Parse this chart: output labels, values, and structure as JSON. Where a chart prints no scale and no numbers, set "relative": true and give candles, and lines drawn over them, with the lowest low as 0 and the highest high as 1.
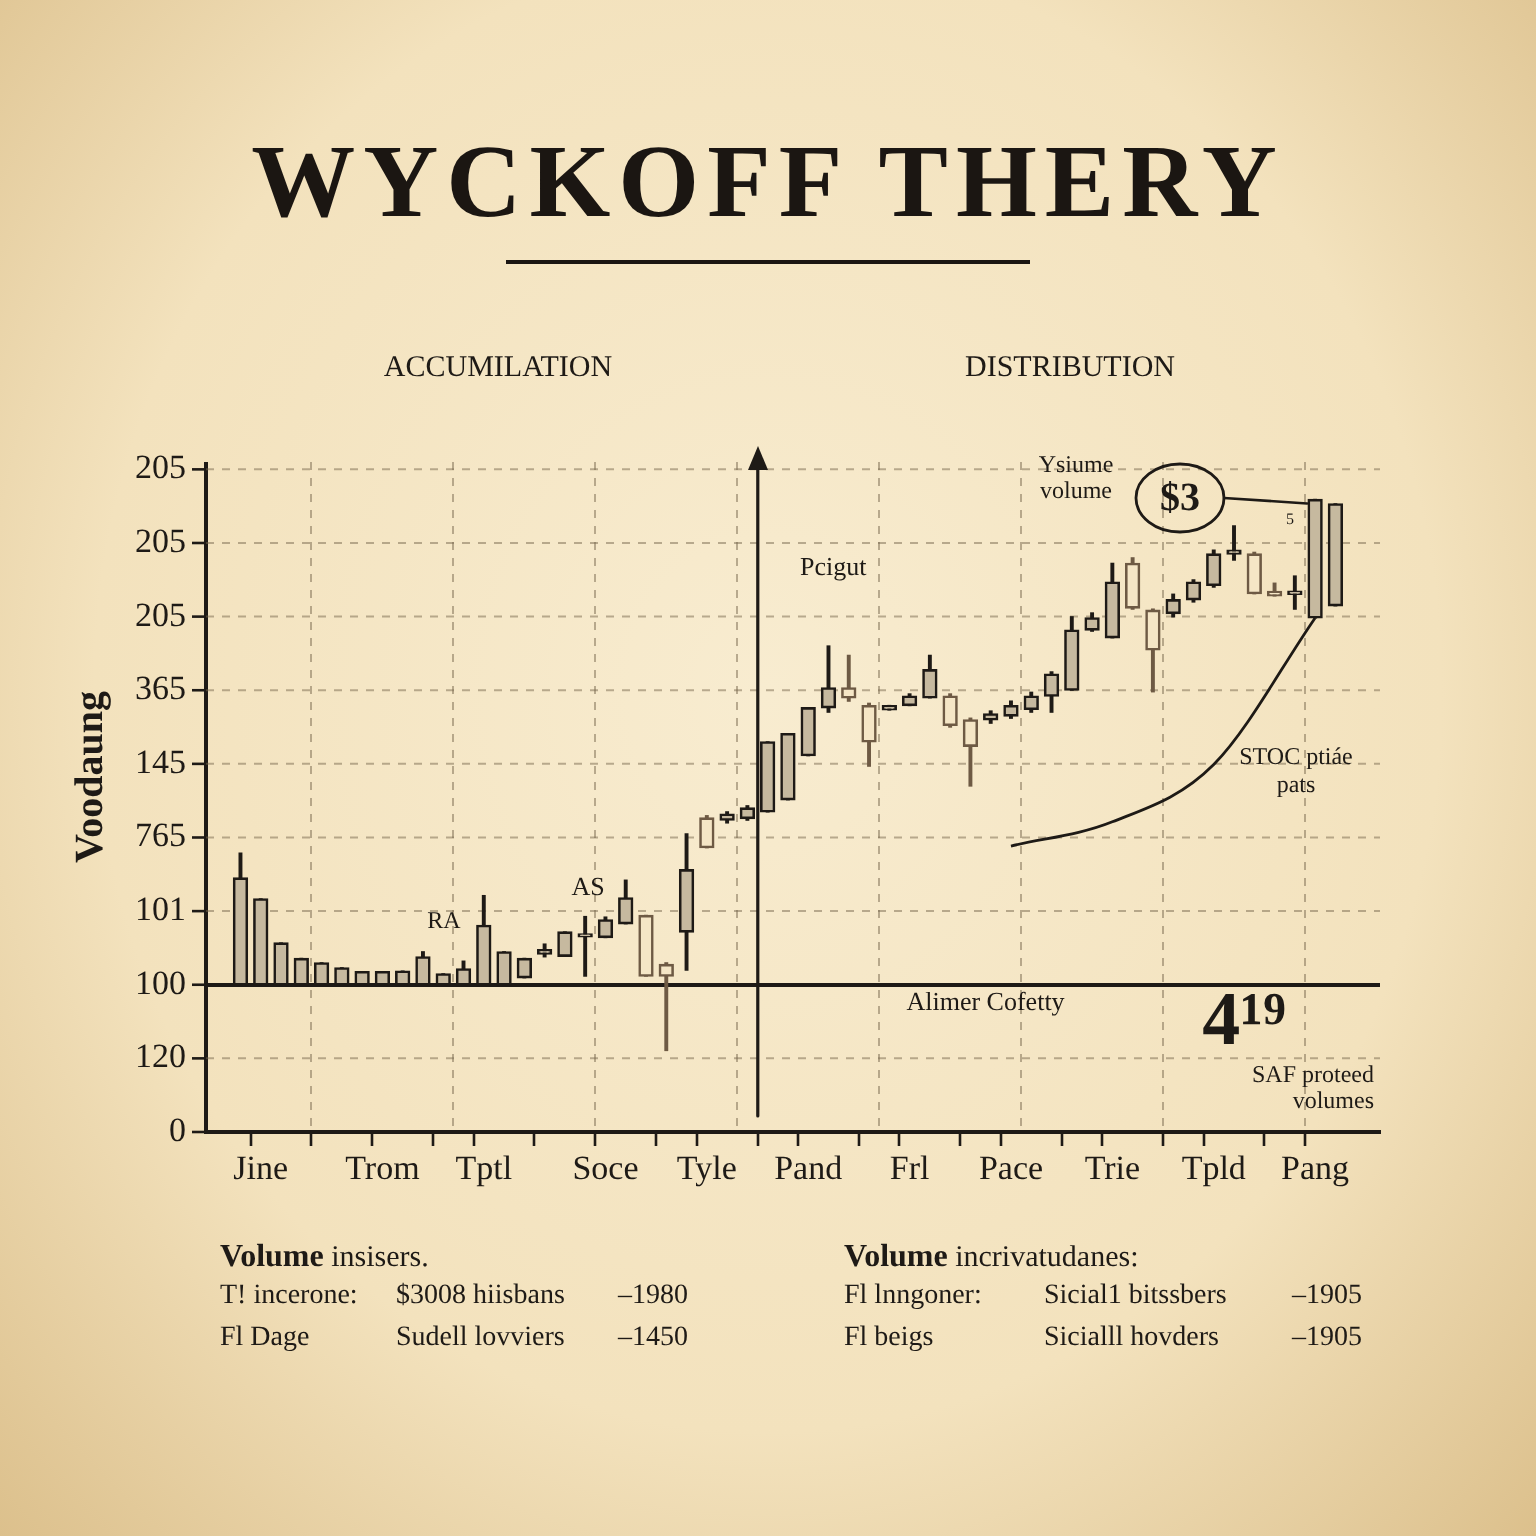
{
  "chart_data": {
    "type": "candlestick",
    "title": "WYCKOFF THERY",
    "ylabel": "Voodaung",
    "relative": true,
    "categories": [
      null,
      "Jine",
      null,
      null,
      null,
      null,
      null,
      "Trom",
      null,
      null,
      null,
      null,
      "Tptl",
      null,
      null,
      null,
      null,
      null,
      "Soce",
      null,
      null,
      null,
      null,
      "Tyle",
      null,
      null,
      null,
      null,
      "Pand",
      null,
      null,
      null,
      null,
      "Frl",
      null,
      null,
      null,
      null,
      "Pace",
      null,
      null,
      null,
      null,
      "Trie",
      null,
      null,
      null,
      null,
      "Tpld",
      null,
      null,
      null,
      null,
      "Pang",
      null
    ],
    "ohlc": [
      [
        0.119,
        0.358,
        0.119,
        0.313
      ],
      [
        0.119,
        0.275,
        0.119,
        0.275
      ],
      [
        0.119,
        0.195,
        0.119,
        0.195
      ],
      [
        0.119,
        0.167,
        0.119,
        0.167
      ],
      [
        0.119,
        0.159,
        0.119,
        0.159
      ],
      [
        0.119,
        0.15,
        0.119,
        0.15
      ],
      [
        0.119,
        0.143,
        0.119,
        0.143
      ],
      [
        0.119,
        0.143,
        0.119,
        0.143
      ],
      [
        0.119,
        0.144,
        0.119,
        0.144
      ],
      [
        0.119,
        0.179,
        0.119,
        0.17
      ],
      [
        0.119,
        0.139,
        0.119,
        0.139
      ],
      [
        0.119,
        0.162,
        0.119,
        0.148
      ],
      [
        0.119,
        0.281,
        0.119,
        0.227
      ],
      [
        0.119,
        0.179,
        0.119,
        0.179
      ],
      [
        0.132,
        0.167,
        0.132,
        0.167
      ],
      [
        0.175,
        0.193,
        0.17,
        0.183
      ],
      [
        0.171,
        0.215,
        0.171,
        0.215
      ],
      [
        0.206,
        0.243,
        0.135,
        0.207
      ],
      [
        0.205,
        0.242,
        0.205,
        0.237
      ],
      [
        0.23,
        0.309,
        0.23,
        0.277
      ],
      [
        0.245,
        0.245,
        0.135,
        0.135
      ],
      [
        0.156,
        0.159,
        0,
        0.135
      ],
      [
        0.215,
        0.393,
        0.146,
        0.328
      ],
      [
        0.422,
        0.426,
        0.368,
        0.368
      ],
      [
        0.418,
        0.433,
        0.413,
        0.429
      ],
      [
        0.421,
        0.444,
        0.418,
        0.44
      ],
      [
        0.433,
        0.56,
        0.433,
        0.56
      ],
      [
        0.455,
        0.575,
        0.455,
        0.575
      ],
      [
        0.535,
        0.622,
        0.535,
        0.622
      ],
      [
        0.622,
        0.734,
        0.614,
        0.658
      ],
      [
        0.658,
        0.717,
        0.634,
        0.64
      ],
      [
        0.626,
        0.63,
        0.516,
        0.56
      ],
      [
        0.618,
        0.626,
        0.618,
        0.626
      ],
      [
        0.626,
        0.647,
        0.626,
        0.643
      ],
      [
        0.64,
        0.717,
        0.64,
        0.691
      ],
      [
        0.643,
        0.647,
        0.587,
        0.59
      ],
      [
        0.6,
        0.603,
        0.48,
        0.552
      ],
      [
        0.6,
        0.616,
        0.594,
        0.611
      ],
      [
        0.607,
        0.634,
        0.603,
        0.626
      ],
      [
        0.619,
        0.65,
        0.614,
        0.643
      ],
      [
        0.643,
        0.687,
        0.614,
        0.683
      ],
      [
        0.654,
        0.787,
        0.654,
        0.763
      ],
      [
        0.763,
        0.794,
        0.761,
        0.785
      ],
      [
        0.749,
        0.884,
        0.749,
        0.85
      ],
      [
        0.884,
        0.894,
        0.801,
        0.803
      ],
      [
        0.799,
        0.801,
        0.651,
        0.727
      ],
      [
        0.793,
        0.828,
        0.787,
        0.818
      ],
      [
        0.818,
        0.854,
        0.814,
        0.85
      ],
      [
        0.844,
        0.908,
        0.841,
        0.901
      ],
      [
        0.901,
        0.952,
        0.89,
        0.908
      ],
      [
        0.901,
        0.904,
        0.829,
        0.829
      ],
      [
        0.833,
        0.848,
        0.825,
        0.825
      ],
      [
        0.828,
        0.861,
        0.801,
        0.83
      ],
      [
        0.785,
        1,
        0.785,
        1
      ],
      [
        0.807,
        0.992,
        0.807,
        0.992
      ]
    ],
    "colors": [
      "#1e1a16",
      "#1e1a16",
      "#1e1a16",
      "#1e1a16",
      "#1e1a16",
      "#1e1a16",
      "#1e1a16",
      "#1e1a16",
      "#1e1a16",
      "#1e1a16",
      "#1e1a16",
      "#1e1a16",
      "#1e1a16",
      "#1e1a16",
      "#1e1a16",
      "#1e1a16",
      "#1e1a16",
      "#1e1a16",
      "#1e1a16",
      "#1e1a16",
      "#6e5a44",
      "#6e5a44",
      "#1e1a16",
      "#6e5a44",
      "#1e1a16",
      "#1e1a16",
      "#1e1a16",
      "#1e1a16",
      "#1e1a16",
      "#1e1a16",
      "#6e5a44",
      "#6e5a44",
      "#1e1a16",
      "#1e1a16",
      "#1e1a16",
      "#6e5a44",
      "#6e5a44",
      "#1e1a16",
      "#1e1a16",
      "#1e1a16",
      "#1e1a16",
      "#1e1a16",
      "#1e1a16",
      "#1e1a16",
      "#6e5a44",
      "#6e5a44",
      "#1e1a16",
      "#1e1a16",
      "#1e1a16",
      "#1e1a16",
      "#6e5a44",
      "#6e5a44",
      "#1e1a16",
      "#1e1a16",
      "#1e1a16"
    ],
    "series": [
      {
        "type": "line",
        "x": [
          "Pace",
          "Trie",
          "Tpld",
          "Pang"
        ],
        "values": [
          0.371,
          0.415,
          0.519,
          0.785
        ],
        "color": "#1e1a16"
      }
    ],
    "grid": true,
    "ref_lines": [
      {
        "axis": "y",
        "value": 0.119,
        "label": "Alimer Cofetty",
        "color": "#1e1a16"
      }
    ],
    "annotations": [
      "ACCUMILATION",
      "DISTRIBUTION",
      "Pcigut",
      "RA",
      "AS",
      "Ysiume volume",
      "$3",
      "5",
      "STOC ptiáe pats",
      "4¹⁹",
      "SAF proteed volumes",
      "Volume insisers.",
      "T! incerone:",
      "$3008 hiisbans",
      "–1980",
      "Fl Dage",
      "Sudell lovviers",
      "–1450",
      "Volume incrivatudanes:",
      "Fl lnngoner:",
      "Sicial1 bitssbers",
      "–1905",
      "Fl beigs",
      "Sicialll hovders",
      "–1905",
      "205",
      "205",
      "205",
      "365",
      "145",
      "765",
      "101",
      "100",
      "120",
      "0"
    ]
  }
}
